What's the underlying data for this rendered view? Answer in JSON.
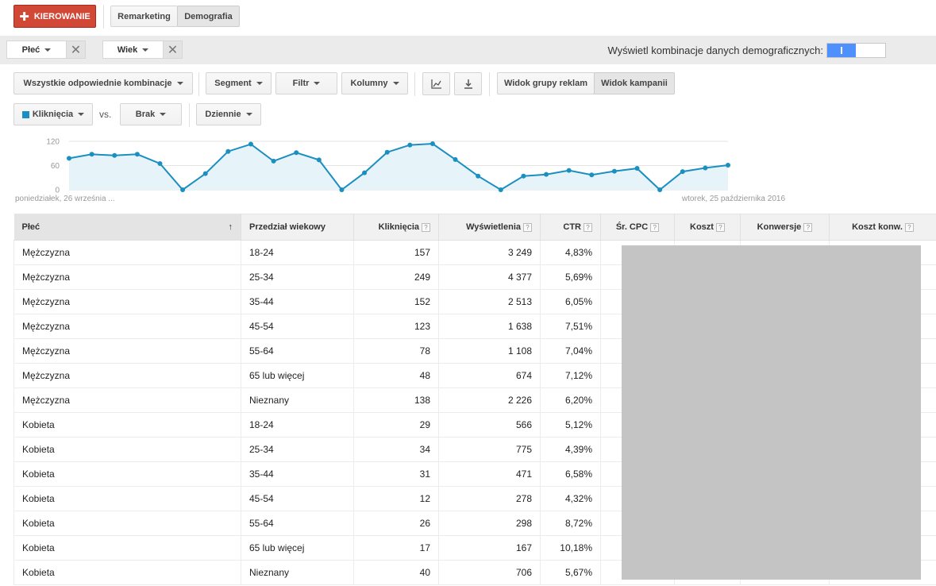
{
  "top": {
    "targeting_button": "KIEROWANIE",
    "tabs": [
      {
        "label": "Remarketing",
        "active": false
      },
      {
        "label": "Demografia",
        "active": true
      }
    ]
  },
  "filters": {
    "chips": [
      {
        "label": "Płeć"
      },
      {
        "label": "Wiek"
      }
    ],
    "combo_label": "Wyświetl kombinacje danych demograficznych:",
    "combo_toggle_on": true
  },
  "toolbar": {
    "combos_dropdown": "Wszystkie odpowiednie kombinacje",
    "segment": "Segment",
    "filter": "Filtr",
    "columns": "Kolumny",
    "chart_icon": "line-chart-icon",
    "download_icon": "download-icon",
    "view_adgroup": "Widok grupy reklam",
    "view_campaign": "Widok kampanii"
  },
  "chart_controls": {
    "metric1": "Kliknięcia",
    "metric1_color": "#1a8fc0",
    "vs": "vs.",
    "metric2": "Brak",
    "period": "Dziennie"
  },
  "chart_data": {
    "type": "area",
    "y_ticks": [
      "120",
      "60",
      "0"
    ],
    "ylim": [
      0,
      120
    ],
    "start_label": "poniedziałek, 26 września ...",
    "end_label": "wtorek, 25 października 2016",
    "series": [
      {
        "name": "Kliknięcia",
        "color": "#1a8fc0",
        "values": [
          78,
          88,
          85,
          88,
          65,
          0,
          40,
          95,
          113,
          71,
          92,
          74,
          0,
          42,
          93,
          111,
          114,
          75,
          34,
          0,
          34,
          38,
          48,
          37,
          46,
          53,
          0,
          45,
          54,
          61
        ]
      }
    ]
  },
  "table": {
    "columns": [
      {
        "label": "Płeć",
        "help": false,
        "sorted": true
      },
      {
        "label": "Przedział wiekowy",
        "help": false
      },
      {
        "label": "Kliknięcia",
        "help": true
      },
      {
        "label": "Wyświetlenia",
        "help": true
      },
      {
        "label": "CTR",
        "help": true
      },
      {
        "label": "Śr. CPC",
        "help": true
      },
      {
        "label": "Koszt",
        "help": true
      },
      {
        "label": "Konwersje",
        "help": true
      },
      {
        "label": "Koszt konw.",
        "help": true
      }
    ],
    "help_glyph": "?",
    "sort_glyph": "↑",
    "rows": [
      [
        "Mężczyzna",
        "18-24",
        "157",
        "3 249",
        "4,83%"
      ],
      [
        "Mężczyzna",
        "25-34",
        "249",
        "4 377",
        "5,69%"
      ],
      [
        "Mężczyzna",
        "35-44",
        "152",
        "2 513",
        "6,05%"
      ],
      [
        "Mężczyzna",
        "45-54",
        "123",
        "1 638",
        "7,51%"
      ],
      [
        "Mężczyzna",
        "55-64",
        "78",
        "1 108",
        "7,04%"
      ],
      [
        "Mężczyzna",
        "65 lub więcej",
        "48",
        "674",
        "7,12%"
      ],
      [
        "Mężczyzna",
        "Nieznany",
        "138",
        "2 226",
        "6,20%"
      ],
      [
        "Kobieta",
        "18-24",
        "29",
        "566",
        "5,12%"
      ],
      [
        "Kobieta",
        "25-34",
        "34",
        "775",
        "4,39%"
      ],
      [
        "Kobieta",
        "35-44",
        "31",
        "471",
        "6,58%"
      ],
      [
        "Kobieta",
        "45-54",
        "12",
        "278",
        "4,32%"
      ],
      [
        "Kobieta",
        "55-64",
        "26",
        "298",
        "8,72%"
      ],
      [
        "Kobieta",
        "65 lub więcej",
        "17",
        "167",
        "10,18%"
      ],
      [
        "Kobieta",
        "Nieznany",
        "40",
        "706",
        "5,67%"
      ]
    ]
  }
}
